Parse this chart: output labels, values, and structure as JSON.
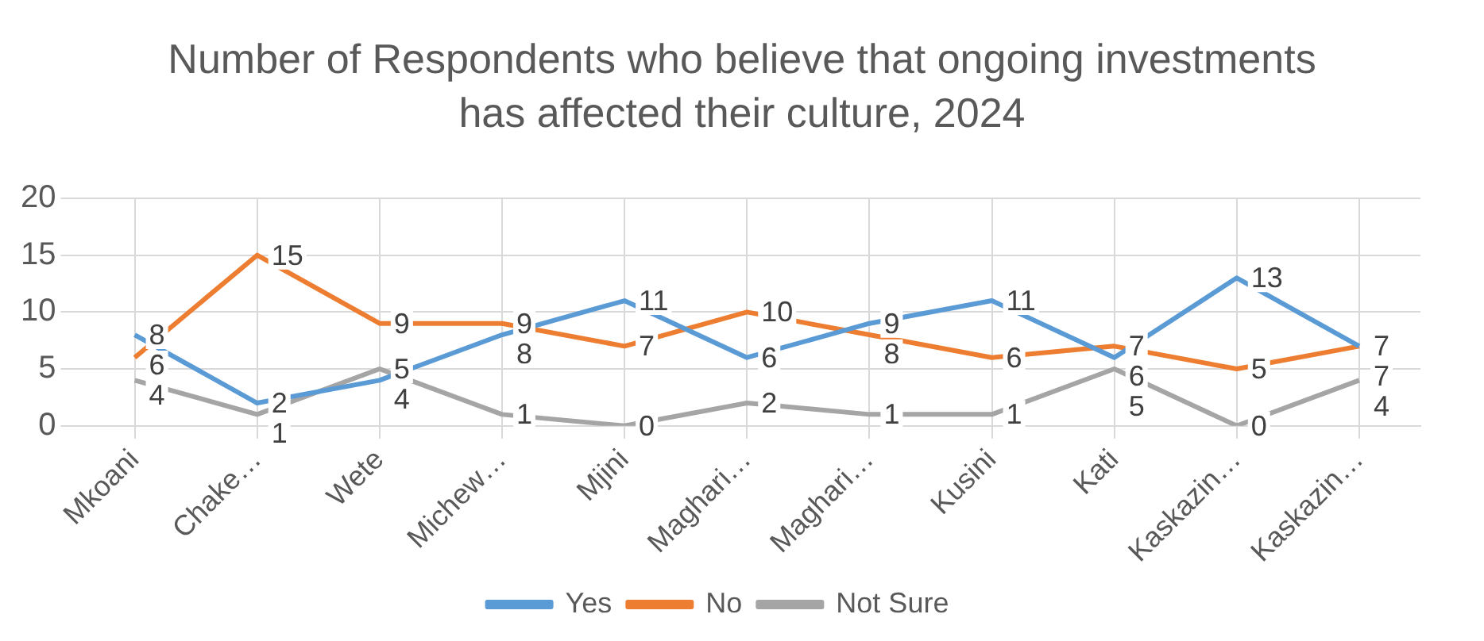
{
  "chart_data": {
    "type": "line",
    "title": "Number of Respondents who believe that ongoing investments has affected their culture, 2024",
    "categories": [
      "Mkoani",
      "Chake…",
      "Wete",
      "Michew…",
      "Mjini",
      "Maghari…",
      "Maghari…",
      "Kusini",
      "Kati",
      "Kaskazin…",
      "Kaskazin…"
    ],
    "series": [
      {
        "name": "Yes",
        "color": "#5b9bd5",
        "values": [
          8,
          2,
          4,
          8,
          11,
          6,
          9,
          11,
          6,
          13,
          7
        ]
      },
      {
        "name": "No",
        "color": "#ed7d31",
        "values": [
          6,
          15,
          9,
          9,
          7,
          10,
          8,
          6,
          7,
          5,
          7
        ]
      },
      {
        "name": "Not Sure",
        "color": "#a5a5a5",
        "values": [
          4,
          1,
          5,
          1,
          0,
          2,
          1,
          1,
          5,
          0,
          4
        ]
      }
    ],
    "ylim": [
      0,
      20
    ],
    "yticks": [
      0,
      5,
      10,
      15,
      20
    ],
    "grid": true,
    "legend": "bottom",
    "data_labels": true,
    "marker": "none",
    "line_style": "solid"
  }
}
